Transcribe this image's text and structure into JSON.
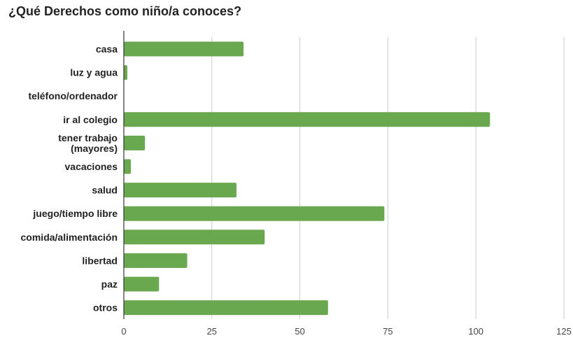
{
  "chart_data": {
    "type": "bar",
    "orientation": "horizontal",
    "title": "¿Qué Derechos como niño/a conoces?",
    "categories": [
      "casa",
      "luz y agua",
      "teléfono/ordenador",
      "ir al colegio",
      "tener trabajo\n(mayores)",
      "vacaciones",
      "salud",
      "juego/tiempo libre",
      "comida/alimentación",
      "libertad",
      "paz",
      "otros"
    ],
    "values": [
      34,
      1,
      0,
      104,
      6,
      2,
      32,
      74,
      40,
      18,
      10,
      58
    ],
    "xlim": [
      0,
      125
    ],
    "xticks": [
      "0",
      "25",
      "50",
      "75",
      "100",
      "125"
    ],
    "xlabel": "",
    "ylabel": "",
    "grid": "vertical",
    "bar_color": "#6aa84f"
  }
}
